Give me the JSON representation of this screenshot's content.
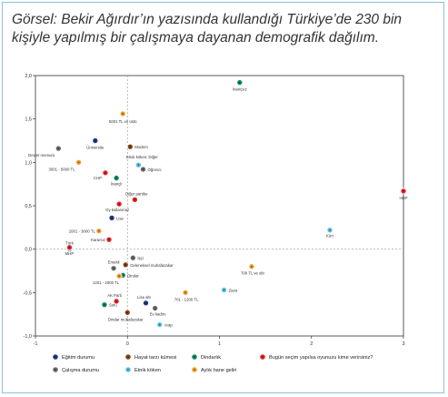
{
  "caption": "Görsel: Bekir Ağırdır’ın yazısında kullandığı Türkiye’de 230 bin kişiyle yapılmış bir çalışmaya dayanan demografik dağılım.",
  "chart_data": {
    "type": "scatter",
    "title": "",
    "xlabel": "",
    "ylabel": "",
    "xlim": [
      -1,
      3
    ],
    "ylim": [
      -1,
      2
    ],
    "xticks": [
      "-1",
      "0",
      "1",
      "2",
      "3"
    ],
    "yticks": [
      "-1,0",
      "-0,5",
      "0,0",
      "0,5",
      "1,0",
      "1,5",
      "2,0"
    ],
    "grid": false,
    "reference_lines": {
      "x": 0,
      "y": 0
    },
    "legend_position": "bottom",
    "series": [
      {
        "name": "Eğitim durumu",
        "color": "#1f3a8a",
        "points": [
          {
            "label": "Üniversite",
            "x": -0.35,
            "y": 1.25
          },
          {
            "label": "Lise",
            "x": -0.17,
            "y": 0.36
          },
          {
            "label": "Lise altı",
            "x": 0.2,
            "y": -0.62
          }
        ]
      },
      {
        "name": "Çalışma durumu",
        "color": "#6d6d6d",
        "points": [
          {
            "label": "Devlet memuru",
            "x": -0.75,
            "y": 1.16
          },
          {
            "label": "Öğrenci",
            "x": 0.17,
            "y": 0.92
          },
          {
            "label": "İşçi",
            "x": 0.06,
            "y": -0.1
          },
          {
            "label": "Emekli",
            "x": -0.15,
            "y": -0.22
          },
          {
            "label": "Ev kadını",
            "x": 0.3,
            "y": -0.68
          }
        ]
      },
      {
        "name": "Hayat tarzı kümesi",
        "color": "#8b4513",
        "points": [
          {
            "label": "Modern",
            "x": 0.03,
            "y": 1.18
          },
          {
            "label": "Geleneksel muhafazakar",
            "x": -0.02,
            "y": -0.18
          },
          {
            "label": "Dindar muhafazakar",
            "x": 0.0,
            "y": -0.73
          }
        ]
      },
      {
        "name": "Etnik köken",
        "color": "#5bc4ea",
        "points": [
          {
            "label": "Etnik köken: Diğer",
            "x": 0.12,
            "y": 0.97
          },
          {
            "label": "Türk",
            "x": -0.63,
            "y": 0.0
          },
          {
            "label": "Kürt",
            "x": 2.2,
            "y": 0.22
          },
          {
            "label": "Zaza",
            "x": 1.05,
            "y": -0.47
          },
          {
            "label": "Arap",
            "x": 0.35,
            "y": -0.87
          }
        ]
      },
      {
        "name": "Dindarlık",
        "color": "#0d8a63",
        "points": [
          {
            "label": "İnançsız",
            "x": 1.22,
            "y": 1.92
          },
          {
            "label": "İnançlı",
            "x": -0.12,
            "y": 0.82
          },
          {
            "label": "Dindar",
            "x": -0.05,
            "y": -0.3
          },
          {
            "label": "Sofu",
            "x": -0.25,
            "y": -0.64
          }
        ]
      },
      {
        "name": "Aylık hane geliri",
        "color": "#f5a030",
        "points": [
          {
            "label": "5001 TL ve üstü",
            "x": -0.05,
            "y": 1.56
          },
          {
            "label": "3001 - 5000 TL",
            "x": -0.53,
            "y": 1.0
          },
          {
            "label": "2001 - 3000 TL",
            "x": -0.31,
            "y": 0.21
          },
          {
            "label": "1201 - 2000 TL",
            "x": -0.09,
            "y": -0.31
          },
          {
            "label": "701 - 1200 TL",
            "x": 0.63,
            "y": -0.5
          },
          {
            "label": "700 TL ve altı",
            "x": 1.35,
            "y": -0.2
          }
        ]
      },
      {
        "name": "Bugün seçim yapılsa oyunuzu kime verirsiniz?",
        "color": "#e8242b",
        "points": [
          {
            "label": "CHP",
            "x": -0.24,
            "y": 0.88
          },
          {
            "label": "Diğer partiler",
            "x": 0.08,
            "y": 0.57
          },
          {
            "label": "Oy kullanmaz",
            "x": -0.09,
            "y": 0.52
          },
          {
            "label": "Kararsız",
            "x": -0.2,
            "y": 0.11
          },
          {
            "label": "MHP",
            "x": -0.63,
            "y": 0.02
          },
          {
            "label": "AK Parti",
            "x": -0.12,
            "y": -0.6
          },
          {
            "label": "HDP",
            "x": 3.0,
            "y": 0.67
          }
        ]
      }
    ]
  }
}
